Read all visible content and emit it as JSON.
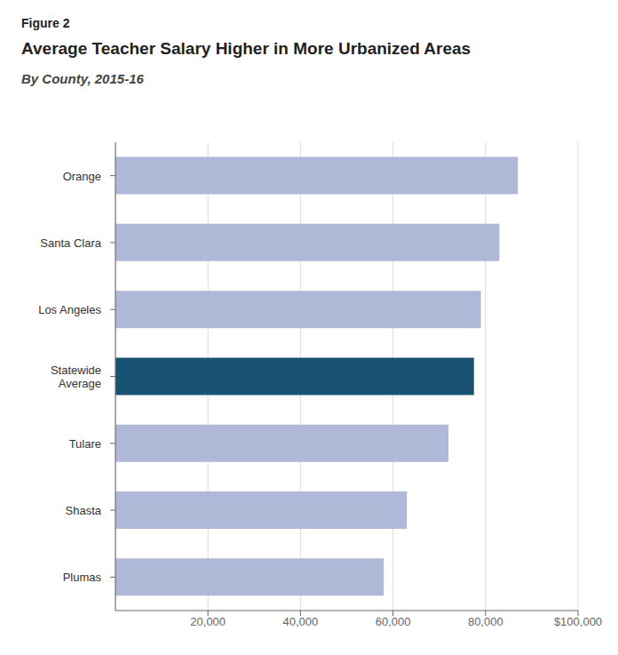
{
  "chart_data": {
    "type": "bar",
    "orientation": "horizontal",
    "annotations": [
      "Figure 2"
    ],
    "title": "Average Teacher Salary Higher in More Urbanized Areas",
    "subtitle": "By County, 2015-16",
    "categories": [
      "Orange",
      "Santa Clara",
      "Los Angeles",
      "Statewide\nAverage",
      "Tulare",
      "Shasta",
      "Plumas"
    ],
    "values": [
      87000,
      83000,
      79000,
      77500,
      72000,
      63000,
      58000
    ],
    "colors": [
      "#b0b8d8",
      "#b0b8d8",
      "#b0b8d8",
      "#1a5276",
      "#b0b8d8",
      "#b0b8d8",
      "#b0b8d8"
    ],
    "xlim": [
      0,
      100000
    ],
    "xticks": [
      {
        "value": 20000,
        "label": "20,000"
      },
      {
        "value": 40000,
        "label": "40,000"
      },
      {
        "value": 60000,
        "label": "60,000"
      },
      {
        "value": 80000,
        "label": "80,000"
      },
      {
        "value": 100000,
        "label": "$100,000"
      }
    ],
    "grid": true
  }
}
